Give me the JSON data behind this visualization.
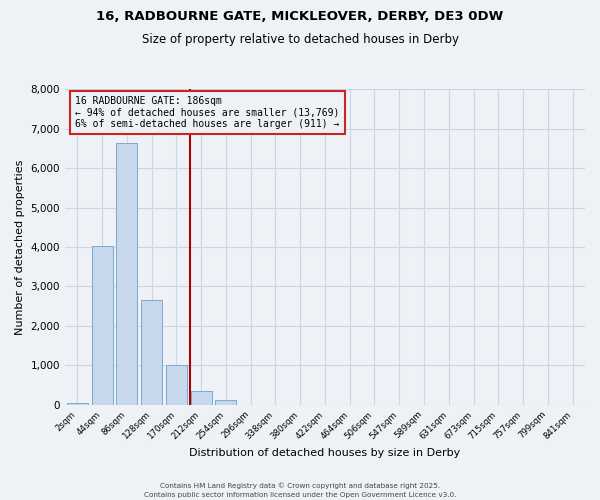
{
  "title": "16, RADBOURNE GATE, MICKLEOVER, DERBY, DE3 0DW",
  "subtitle": "Size of property relative to detached houses in Derby",
  "xlabel": "Distribution of detached houses by size in Derby",
  "ylabel": "Number of detached properties",
  "bin_labels": [
    "2sqm",
    "44sqm",
    "86sqm",
    "128sqm",
    "170sqm",
    "212sqm",
    "254sqm",
    "296sqm",
    "338sqm",
    "380sqm",
    "422sqm",
    "464sqm",
    "506sqm",
    "547sqm",
    "589sqm",
    "631sqm",
    "673sqm",
    "715sqm",
    "757sqm",
    "799sqm",
    "841sqm"
  ],
  "bar_values": [
    50,
    4030,
    6650,
    2650,
    1000,
    340,
    120,
    0,
    0,
    0,
    0,
    0,
    0,
    0,
    0,
    0,
    0,
    0,
    0,
    0,
    0
  ],
  "bar_color": "#c8d8ec",
  "bar_edge_color": "#7aaad0",
  "vline_color": "#aa0000",
  "vline_x_index": 4.57,
  "annotation_title": "16 RADBOURNE GATE: 186sqm",
  "annotation_line1": "← 94% of detached houses are smaller (13,769)",
  "annotation_line2": "6% of semi-detached houses are larger (911) →",
  "annotation_box_color": "#cc2222",
  "ylim": [
    0,
    8000
  ],
  "yticks": [
    0,
    1000,
    2000,
    3000,
    4000,
    5000,
    6000,
    7000,
    8000
  ],
  "footer1": "Contains HM Land Registry data © Crown copyright and database right 2025.",
  "footer2": "Contains public sector information licensed under the Open Government Licence v3.0.",
  "bg_color": "#eef2f7",
  "grid_color": "#cdd5e0"
}
